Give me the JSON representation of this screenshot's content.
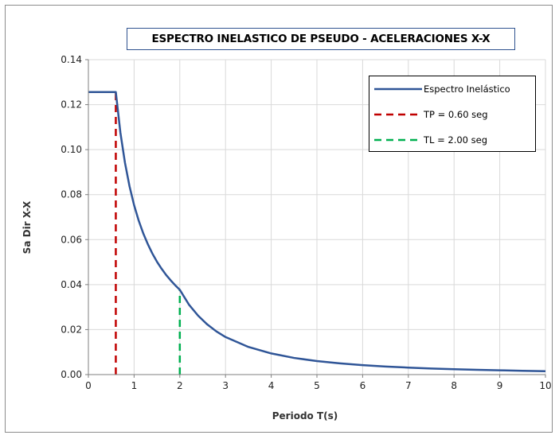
{
  "chart_data": {
    "type": "line",
    "title": "ESPECTRO INELASTICO DE PSEUDO - ACELERACIONES X-X",
    "xlabel": "Periodo T(s)",
    "ylabel": "Sa Dir X-X",
    "xlim": [
      0,
      10
    ],
    "ylim": [
      0,
      0.14
    ],
    "x_ticks": [
      "0",
      "1",
      "2",
      "3",
      "4",
      "5",
      "6",
      "7",
      "8",
      "9",
      "10"
    ],
    "y_ticks": [
      "0.00",
      "0.02",
      "0.04",
      "0.06",
      "0.08",
      "0.10",
      "0.12",
      "0.14"
    ],
    "grid": true,
    "legend_position": "top-right",
    "series": [
      {
        "name": "Espectro Inelástico",
        "color": "#2f5597",
        "style": "solid",
        "x": [
          0,
          0.6,
          0.7,
          0.8,
          0.9,
          1.0,
          1.1,
          1.2,
          1.3,
          1.4,
          1.5,
          1.6,
          1.7,
          1.8,
          1.9,
          2.0,
          2.2,
          2.4,
          2.6,
          2.8,
          3.0,
          3.5,
          4.0,
          4.5,
          5.0,
          5.5,
          6.0,
          6.5,
          7.0,
          7.5,
          8.0,
          8.5,
          9.0,
          9.5,
          10.0
        ],
        "y": [
          0.1256,
          0.1256,
          0.1076,
          0.0942,
          0.0837,
          0.0753,
          0.0685,
          0.0628,
          0.058,
          0.0538,
          0.0502,
          0.0471,
          0.0443,
          0.0419,
          0.0397,
          0.0377,
          0.0311,
          0.0262,
          0.0223,
          0.0192,
          0.0167,
          0.0123,
          0.0094,
          0.0074,
          0.006,
          0.005,
          0.0042,
          0.0036,
          0.0031,
          0.0027,
          0.0024,
          0.0021,
          0.0019,
          0.0017,
          0.0015
        ]
      },
      {
        "name": "TP = 0.60 seg",
        "color": "#c00000",
        "style": "dashed",
        "x": [
          0.6,
          0.6
        ],
        "y": [
          0,
          0.1256
        ]
      },
      {
        "name": "TL = 2.00 seg",
        "color": "#00b050",
        "style": "dashed",
        "x": [
          2.0,
          2.0
        ],
        "y": [
          0,
          0.0377
        ]
      }
    ]
  }
}
